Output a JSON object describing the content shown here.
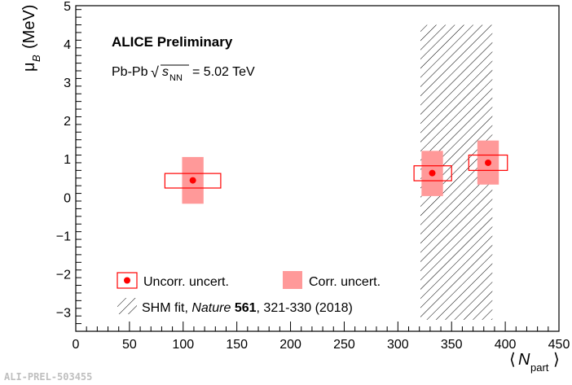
{
  "chart_data": {
    "type": "scatter",
    "title": "ALICE Preliminary",
    "system_label": "Pb-Pb",
    "energy_label": {
      "sqrt": "√",
      "s": "s",
      "sub": "NN",
      "value": "= 5.02 TeV"
    },
    "xlabel": {
      "open": "⟨",
      "main": "N",
      "sub": "part",
      "close": "⟩"
    },
    "ylabel": {
      "main": "μ",
      "sub": "B",
      "unit": "(MeV)"
    },
    "xlim": [
      0,
      450
    ],
    "ylim": [
      -3.5,
      5
    ],
    "x_ticks": [
      "0",
      "50",
      "100",
      "150",
      "200",
      "250",
      "300",
      "350",
      "400",
      "450"
    ],
    "x_tick_values": [
      0,
      50,
      100,
      150,
      200,
      250,
      300,
      350,
      400,
      450
    ],
    "y_ticks": [
      "−3",
      "−2",
      "−1",
      "0",
      "1",
      "2",
      "3",
      "4",
      "5"
    ],
    "y_tick_values": [
      -3,
      -2,
      -1,
      0,
      1,
      2,
      3,
      4,
      5
    ],
    "points": [
      {
        "x": 109,
        "y": 0.44,
        "uncorr_x": [
          83,
          135
        ],
        "uncorr_y": [
          0.24,
          0.62
        ],
        "corr_x": [
          99,
          119
        ],
        "corr_y": [
          -0.17,
          1.05
        ]
      },
      {
        "x": 332,
        "y": 0.63,
        "uncorr_x": [
          315,
          350
        ],
        "uncorr_y": [
          0.43,
          0.82
        ],
        "corr_x": [
          322,
          342
        ],
        "corr_y": [
          0.03,
          1.21
        ]
      },
      {
        "x": 384,
        "y": 0.9,
        "uncorr_x": [
          366,
          402
        ],
        "uncorr_y": [
          0.7,
          1.1
        ],
        "corr_x": [
          374,
          394
        ],
        "corr_y": [
          0.33,
          1.48
        ]
      }
    ],
    "shm_band": {
      "x": [
        321,
        388
      ],
      "y": [
        -3.2,
        4.5
      ]
    },
    "legend": {
      "uncorr": "Uncorr. uncert.",
      "corr": "Corr. uncert.",
      "shm_prefix": "SHM fit, ",
      "shm_journal": "Nature",
      "shm_volume": "561",
      "shm_suffix": ", 321-330 (2018)"
    },
    "colors": {
      "marker": "#ff0000",
      "corr_fill": "#ff9999",
      "band_hatch": "#000000"
    },
    "grid": false
  },
  "footer_id": "ALI-PREL-503455"
}
